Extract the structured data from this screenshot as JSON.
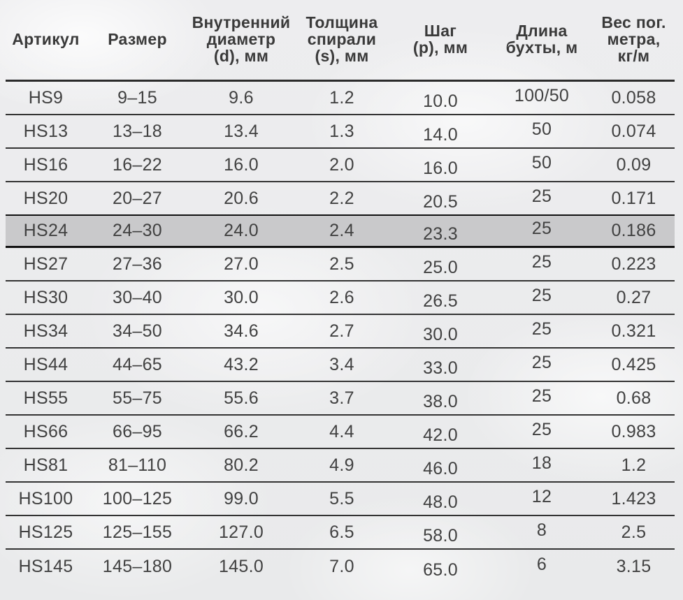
{
  "table": {
    "columns": [
      {
        "id": "article",
        "label": "Артикул"
      },
      {
        "id": "size",
        "label": "Размер"
      },
      {
        "id": "inner_diameter",
        "label": "Внутренний\nдиаметр\n(d), мм"
      },
      {
        "id": "spiral_thickness",
        "label": "Толщина\nспирали\n(s), мм"
      },
      {
        "id": "pitch",
        "label": "Шаг\n(p), мм"
      },
      {
        "id": "coil_length",
        "label": "Длина\nбухты, м"
      },
      {
        "id": "weight_per_meter",
        "label": "Вес пог.\nметра,\nкг/м"
      }
    ],
    "rows": [
      {
        "cells": [
          "HS9",
          "9–15",
          "9.6",
          "1.2",
          "10.0",
          "100/50",
          "0.058"
        ],
        "highlighted": false
      },
      {
        "cells": [
          "HS13",
          "13–18",
          "13.4",
          "1.3",
          "14.0",
          "50",
          "0.074"
        ],
        "highlighted": false
      },
      {
        "cells": [
          "HS16",
          "16–22",
          "16.0",
          "2.0",
          "16.0",
          "50",
          "0.09"
        ],
        "highlighted": false
      },
      {
        "cells": [
          "HS20",
          "20–27",
          "20.6",
          "2.2",
          "20.5",
          "25",
          "0.171"
        ],
        "highlighted": false
      },
      {
        "cells": [
          "HS24",
          "24–30",
          "24.0",
          "2.4",
          "23.3",
          "25",
          "0.186"
        ],
        "highlighted": true
      },
      {
        "cells": [
          "HS27",
          "27–36",
          "27.0",
          "2.5",
          "25.0",
          "25",
          "0.223"
        ],
        "highlighted": false
      },
      {
        "cells": [
          "HS30",
          "30–40",
          "30.0",
          "2.6",
          "26.5",
          "25",
          "0.27"
        ],
        "highlighted": false
      },
      {
        "cells": [
          "HS34",
          "34–50",
          "34.6",
          "2.7",
          "30.0",
          "25",
          "0.321"
        ],
        "highlighted": false
      },
      {
        "cells": [
          "HS44",
          "44–65",
          "43.2",
          "3.4",
          "33.0",
          "25",
          "0.425"
        ],
        "highlighted": false
      },
      {
        "cells": [
          "HS55",
          "55–75",
          "55.6",
          "3.7",
          "38.0",
          "25",
          "0.68"
        ],
        "highlighted": false
      },
      {
        "cells": [
          "HS66",
          "66–95",
          "66.2",
          "4.4",
          "42.0",
          "25",
          "0.983"
        ],
        "highlighted": false
      },
      {
        "cells": [
          "HS81",
          "81–110",
          "80.2",
          "4.9",
          "46.0",
          "18",
          "1.2"
        ],
        "highlighted": false
      },
      {
        "cells": [
          "HS100",
          "100–125",
          "99.0",
          "5.5",
          "48.0",
          "12",
          "1.423"
        ],
        "highlighted": false
      },
      {
        "cells": [
          "HS125",
          "125–155",
          "127.0",
          "6.5",
          "58.0",
          "8",
          "2.5"
        ],
        "highlighted": false
      },
      {
        "cells": [
          "HS145",
          "145–180",
          "145.0",
          "7.0",
          "65.0",
          "6",
          "3.15"
        ],
        "highlighted": false
      }
    ]
  },
  "colors": {
    "text": "#3f3f3f",
    "line": "#2d2d2d",
    "highlight_bg": "#c9c9cb",
    "background": "#ebeced"
  }
}
